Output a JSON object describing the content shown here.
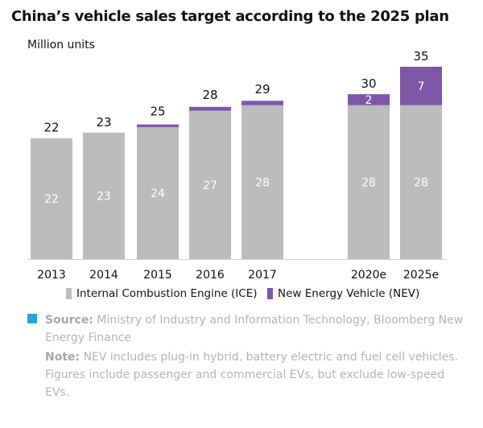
{
  "chart_data": {
    "type": "bar",
    "stacked": true,
    "title": "China’s vehicle sales target according to the 2025 plan",
    "ylabel": "Million units",
    "xlabel": "",
    "ylim": [
      0,
      35
    ],
    "grid": false,
    "legend_position": "bottom",
    "categories": [
      "2013",
      "2014",
      "2015",
      "2016",
      "2017",
      "2020e",
      "2025e"
    ],
    "series": [
      {
        "name": "Internal Combustion Engine (ICE)",
        "color": "#bcbcbc",
        "values": [
          22,
          23,
          24,
          27,
          28,
          28,
          28
        ],
        "labels": [
          "22",
          "23",
          "24",
          "27",
          "28",
          "28",
          "28"
        ]
      },
      {
        "name": "New Energy Vehicle (NEV)",
        "color": "#7d56a8",
        "values": [
          0,
          0,
          0.5,
          0.7,
          0.8,
          2,
          7
        ],
        "labels": [
          "",
          "",
          "",
          "",
          "",
          "2",
          "7"
        ]
      }
    ],
    "totals": [
      22,
      23,
      25,
      28,
      29,
      30,
      35
    ]
  },
  "source": {
    "label": "Source:",
    "text": "Ministry of Industry and Information Technology, Bloomberg New Energy Finance"
  },
  "note": {
    "label": "Note:",
    "text": "NEV includes plug-in hybrid, battery electric and fuel cell vehicles. Figures include passenger and commercial EVs, but exclude low-speed EVs."
  },
  "colors": {
    "ice": "#bcbcbc",
    "nev": "#7d56a8",
    "marker": "#29a3d9"
  }
}
